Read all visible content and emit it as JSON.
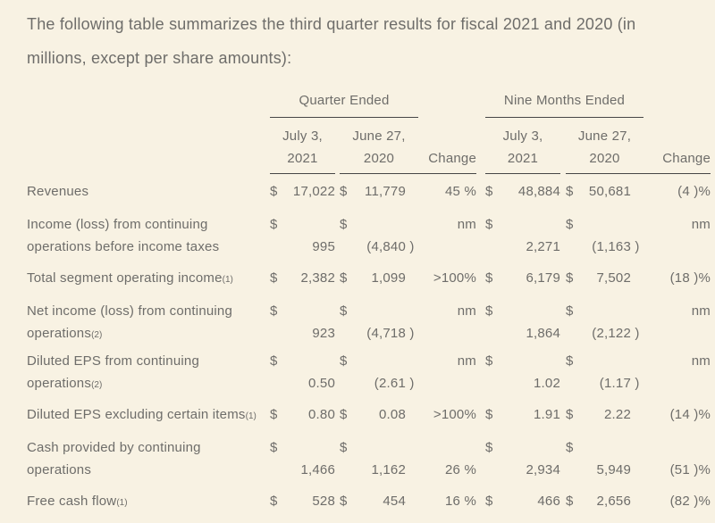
{
  "intro": "The following table summarizes the third quarter results for fiscal 2021 and 2020 (in millions, except per share amounts):",
  "colors": {
    "background": "#f8f2e3",
    "text": "#6e6d6a",
    "rule": "#464646"
  },
  "table": {
    "groups": {
      "quarter": "Quarter Ended",
      "nine_months": "Nine Months Ended"
    },
    "columns": {
      "q_2021": {
        "line1": "July 3,",
        "line2": "2021"
      },
      "q_2020": {
        "line1": "June 27,",
        "line2": "2020"
      },
      "q_change": "Change",
      "n_2021": {
        "line1": "July 3,",
        "line2": "2021"
      },
      "n_2020": {
        "line1": "June 27,",
        "line2": "2020"
      },
      "n_change": "Change"
    },
    "rows": [
      {
        "label_line1": "Revenues",
        "footnote": "",
        "q2021": {
          "cur": "$",
          "val": "17,022",
          "close": ""
        },
        "q2020": {
          "cur": "$",
          "val": "11,779",
          "close": ""
        },
        "q_change": "45 %",
        "n2021": {
          "cur": "$",
          "val": "48,884",
          "close": ""
        },
        "n2020": {
          "cur": "$",
          "val": "50,681",
          "close": ""
        },
        "n_change": "(4 )%"
      },
      {
        "label_line1": "Income (loss) from continuing",
        "label_line2": "operations before income taxes",
        "footnote": "",
        "q2021": {
          "cur": "$",
          "val": "995",
          "close": ""
        },
        "q2020": {
          "cur": "$",
          "val": "(4,840",
          "close": ")"
        },
        "q_change": "nm",
        "n2021": {
          "cur": "$",
          "val": "2,271",
          "close": ""
        },
        "n2020": {
          "cur": "$",
          "val": "(1,163",
          "close": ")"
        },
        "n_change": "nm"
      },
      {
        "label_line1": "Total segment operating income",
        "footnote": "(1)",
        "q2021": {
          "cur": "$",
          "val": "2,382",
          "close": ""
        },
        "q2020": {
          "cur": "$",
          "val": "1,099",
          "close": ""
        },
        "q_change": ">100%",
        "n2021": {
          "cur": "$",
          "val": "6,179",
          "close": ""
        },
        "n2020": {
          "cur": "$",
          "val": "7,502",
          "close": ""
        },
        "n_change": "(18 )%"
      },
      {
        "label_line1": "Net income (loss) from continuing",
        "label_line2": "operations",
        "footnote": "(2)",
        "q2021": {
          "cur": "$",
          "val": "923",
          "close": ""
        },
        "q2020": {
          "cur": "$",
          "val": "(4,718",
          "close": ")"
        },
        "q_change": "nm",
        "n2021": {
          "cur": "$",
          "val": "1,864",
          "close": ""
        },
        "n2020": {
          "cur": "$",
          "val": "(2,122",
          "close": ")"
        },
        "n_change": "nm"
      },
      {
        "label_line1": "Diluted EPS from continuing",
        "label_line2": "operations",
        "footnote": "(2)",
        "q2021": {
          "cur": "$",
          "val": "0.50",
          "close": ""
        },
        "q2020": {
          "cur": "$",
          "val": "(2.61",
          "close": ")"
        },
        "q_change": "nm",
        "n2021": {
          "cur": "$",
          "val": "1.02",
          "close": ""
        },
        "n2020": {
          "cur": "$",
          "val": "(1.17",
          "close": ")"
        },
        "n_change": "nm"
      },
      {
        "label_line1": "Diluted EPS excluding certain items",
        "footnote": "(1)",
        "q2021": {
          "cur": "$",
          "val": "0.80",
          "close": ""
        },
        "q2020": {
          "cur": "$",
          "val": "0.08",
          "close": ""
        },
        "q_change": ">100%",
        "n2021": {
          "cur": "$",
          "val": "1.91",
          "close": ""
        },
        "n2020": {
          "cur": "$",
          "val": "2.22",
          "close": ""
        },
        "n_change": "(14 )%"
      },
      {
        "label_line1": "Cash provided by continuing",
        "label_line2": "operations",
        "footnote": "",
        "q2021": {
          "cur": "$",
          "val": "1,466",
          "close": ""
        },
        "q2020": {
          "cur": "$",
          "val": "1,162",
          "close": ""
        },
        "q_change": "26 %",
        "n2021": {
          "cur": "$",
          "val": "2,934",
          "close": ""
        },
        "n2020": {
          "cur": "$",
          "val": "5,949",
          "close": ""
        },
        "n_change": "(51 )%"
      },
      {
        "label_line1": "Free cash flow",
        "footnote": "(1)",
        "q2021": {
          "cur": "$",
          "val": "528",
          "close": ""
        },
        "q2020": {
          "cur": "$",
          "val": "454",
          "close": ""
        },
        "q_change": "16 %",
        "n2021": {
          "cur": "$",
          "val": "466",
          "close": ""
        },
        "n2020": {
          "cur": "$",
          "val": "2,656",
          "close": ""
        },
        "n_change": "(82 )%"
      }
    ]
  }
}
